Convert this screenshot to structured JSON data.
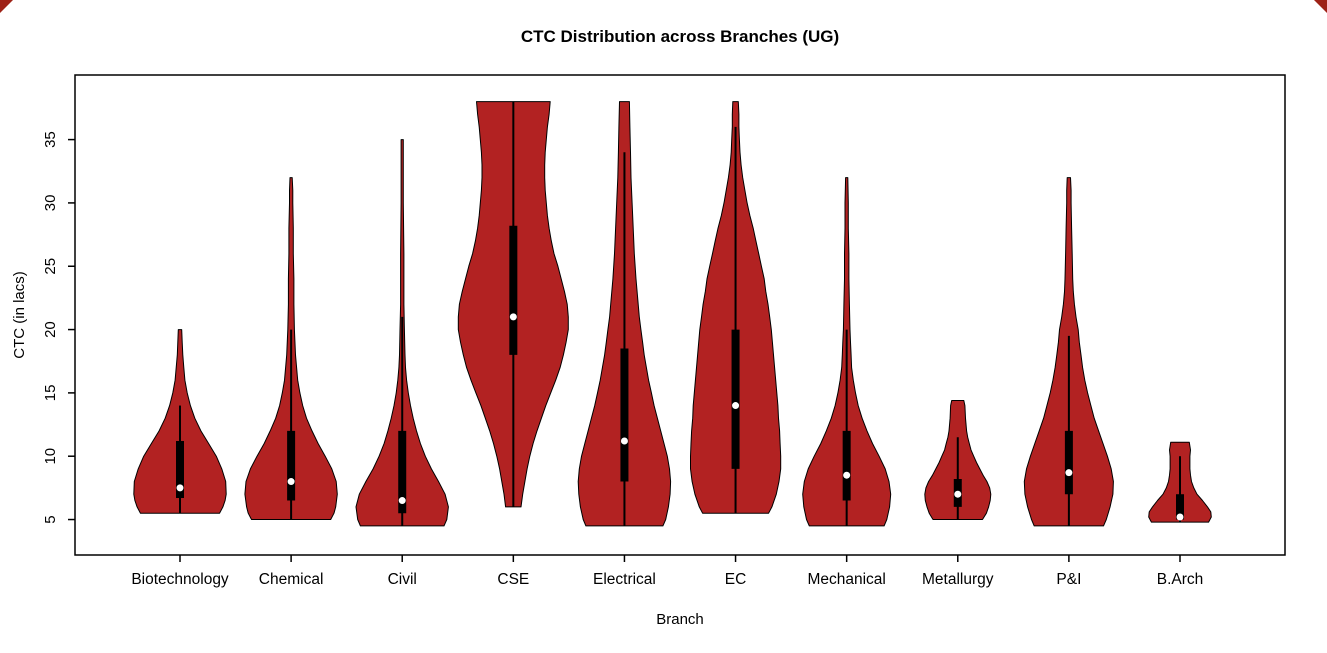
{
  "chart_data": {
    "type": "violin",
    "title": "CTC Distribution across Branches (UG)",
    "xlabel": "Branch",
    "ylabel": "CTC (in lacs)",
    "ylim": [
      2.2,
      40.1
    ],
    "yticks": [
      5,
      10,
      15,
      20,
      25,
      30,
      35
    ],
    "legend": "none",
    "grid": false,
    "colors": {
      "violin_fill": "#b22222",
      "outline": "#000000",
      "box": "#000000",
      "median_dot": "#ffffff",
      "background": "#ffffff",
      "corner_artifact": "#9e2217"
    },
    "categories": [
      "Biotechnology",
      "Chemical",
      "Civil",
      "CSE",
      "Electrical",
      "EC",
      "Mechanical",
      "Metallurgy",
      "P&I",
      "B.Arch"
    ],
    "series": [
      {
        "name": "Biotechnology",
        "shape": [
          [
            5.5,
            0.72
          ],
          [
            6,
            0.78
          ],
          [
            6.5,
            0.82
          ],
          [
            7,
            0.84
          ],
          [
            8,
            0.83
          ],
          [
            9,
            0.76
          ],
          [
            10,
            0.66
          ],
          [
            11,
            0.52
          ],
          [
            12,
            0.38
          ],
          [
            13,
            0.27
          ],
          [
            14,
            0.19
          ],
          [
            15,
            0.13
          ],
          [
            16,
            0.09
          ],
          [
            17,
            0.07
          ],
          [
            18,
            0.05
          ],
          [
            19,
            0.04
          ],
          [
            20,
            0.03
          ]
        ],
        "box": {
          "low": 5.5,
          "q1": 6.7,
          "median": 7.5,
          "q3": 11.2,
          "high": 14
        }
      },
      {
        "name": "Chemical",
        "shape": [
          [
            5,
            0.72
          ],
          [
            5.5,
            0.78
          ],
          [
            6,
            0.81
          ],
          [
            7,
            0.84
          ],
          [
            8,
            0.82
          ],
          [
            9,
            0.74
          ],
          [
            10,
            0.62
          ],
          [
            11,
            0.49
          ],
          [
            12,
            0.38
          ],
          [
            13,
            0.28
          ],
          [
            14,
            0.21
          ],
          [
            15,
            0.16
          ],
          [
            16,
            0.12
          ],
          [
            17,
            0.1
          ],
          [
            18,
            0.08
          ],
          [
            20,
            0.06
          ],
          [
            22,
            0.05
          ],
          [
            24,
            0.05
          ],
          [
            26,
            0.04
          ],
          [
            28,
            0.04
          ],
          [
            30,
            0.03
          ],
          [
            31,
            0.03
          ],
          [
            32,
            0.02
          ]
        ],
        "box": {
          "low": 5,
          "q1": 6.5,
          "median": 8,
          "q3": 12,
          "high": 20
        }
      },
      {
        "name": "Civil",
        "shape": [
          [
            4.5,
            0.76
          ],
          [
            5,
            0.81
          ],
          [
            6,
            0.84
          ],
          [
            7,
            0.78
          ],
          [
            8,
            0.66
          ],
          [
            9,
            0.53
          ],
          [
            10,
            0.42
          ],
          [
            11,
            0.33
          ],
          [
            12,
            0.26
          ],
          [
            13,
            0.2
          ],
          [
            14,
            0.15
          ],
          [
            15,
            0.11
          ],
          [
            16,
            0.08
          ],
          [
            17,
            0.06
          ],
          [
            18,
            0.05
          ],
          [
            20,
            0.04
          ],
          [
            22,
            0.03
          ],
          [
            26,
            0.03
          ],
          [
            30,
            0.02
          ],
          [
            33,
            0.02
          ],
          [
            35,
            0.02
          ]
        ],
        "box": {
          "low": 4.5,
          "q1": 5.5,
          "median": 6.5,
          "q3": 12,
          "high": 21
        }
      },
      {
        "name": "CSE",
        "shape": [
          [
            6,
            0.14
          ],
          [
            7,
            0.17
          ],
          [
            8,
            0.21
          ],
          [
            9,
            0.25
          ],
          [
            10,
            0.3
          ],
          [
            11,
            0.36
          ],
          [
            12,
            0.43
          ],
          [
            13,
            0.51
          ],
          [
            14,
            0.59
          ],
          [
            15,
            0.68
          ],
          [
            16,
            0.77
          ],
          [
            17,
            0.85
          ],
          [
            18,
            0.91
          ],
          [
            19,
            0.96
          ],
          [
            20,
            1.0
          ],
          [
            21,
            1.0
          ],
          [
            22,
            0.98
          ],
          [
            23,
            0.93
          ],
          [
            24,
            0.87
          ],
          [
            25,
            0.81
          ],
          [
            26,
            0.74
          ],
          [
            27,
            0.69
          ],
          [
            28,
            0.65
          ],
          [
            29,
            0.62
          ],
          [
            30,
            0.6
          ],
          [
            31,
            0.58
          ],
          [
            32,
            0.57
          ],
          [
            33,
            0.57
          ],
          [
            34,
            0.58
          ],
          [
            35,
            0.6
          ],
          [
            36,
            0.62
          ],
          [
            37,
            0.65
          ],
          [
            38,
            0.67
          ]
        ],
        "box": {
          "low": 6,
          "q1": 18,
          "median": 21,
          "q3": 28.2,
          "high": 38
        }
      },
      {
        "name": "Electrical",
        "shape": [
          [
            4.5,
            0.7
          ],
          [
            5,
            0.75
          ],
          [
            6,
            0.8
          ],
          [
            7,
            0.83
          ],
          [
            8,
            0.84
          ],
          [
            9,
            0.82
          ],
          [
            10,
            0.78
          ],
          [
            11,
            0.72
          ],
          [
            12,
            0.66
          ],
          [
            13,
            0.6
          ],
          [
            14,
            0.54
          ],
          [
            15,
            0.49
          ],
          [
            16,
            0.44
          ],
          [
            17,
            0.4
          ],
          [
            18,
            0.36
          ],
          [
            19,
            0.33
          ],
          [
            20,
            0.3
          ],
          [
            21,
            0.27
          ],
          [
            22,
            0.25
          ],
          [
            24,
            0.21
          ],
          [
            26,
            0.18
          ],
          [
            28,
            0.16
          ],
          [
            30,
            0.14
          ],
          [
            32,
            0.12
          ],
          [
            34,
            0.11
          ],
          [
            36,
            0.1
          ],
          [
            38,
            0.09
          ]
        ],
        "box": {
          "low": 4.5,
          "q1": 8,
          "median": 11.2,
          "q3": 18.5,
          "high": 34
        }
      },
      {
        "name": "EC",
        "shape": [
          [
            5.5,
            0.6
          ],
          [
            6,
            0.66
          ],
          [
            7,
            0.74
          ],
          [
            8,
            0.79
          ],
          [
            9,
            0.82
          ],
          [
            10,
            0.82
          ],
          [
            11,
            0.81
          ],
          [
            12,
            0.8
          ],
          [
            13,
            0.78
          ],
          [
            14,
            0.77
          ],
          [
            15,
            0.75
          ],
          [
            16,
            0.73
          ],
          [
            17,
            0.71
          ],
          [
            18,
            0.69
          ],
          [
            19,
            0.67
          ],
          [
            20,
            0.65
          ],
          [
            21,
            0.62
          ],
          [
            22,
            0.59
          ],
          [
            23,
            0.55
          ],
          [
            24,
            0.52
          ],
          [
            25,
            0.47
          ],
          [
            26,
            0.42
          ],
          [
            27,
            0.37
          ],
          [
            28,
            0.32
          ],
          [
            29,
            0.26
          ],
          [
            30,
            0.21
          ],
          [
            31,
            0.17
          ],
          [
            32,
            0.13
          ],
          [
            33,
            0.1
          ],
          [
            34,
            0.08
          ],
          [
            35,
            0.07
          ],
          [
            36,
            0.06
          ],
          [
            37,
            0.06
          ],
          [
            38,
            0.05
          ]
        ],
        "box": {
          "low": 5.5,
          "q1": 9,
          "median": 14,
          "q3": 20,
          "high": 36
        }
      },
      {
        "name": "Mechanical",
        "shape": [
          [
            4.5,
            0.68
          ],
          [
            5,
            0.73
          ],
          [
            6,
            0.78
          ],
          [
            7,
            0.8
          ],
          [
            8,
            0.77
          ],
          [
            9,
            0.7
          ],
          [
            10,
            0.59
          ],
          [
            11,
            0.47
          ],
          [
            12,
            0.37
          ],
          [
            13,
            0.28
          ],
          [
            14,
            0.21
          ],
          [
            15,
            0.16
          ],
          [
            16,
            0.12
          ],
          [
            17,
            0.09
          ],
          [
            18,
            0.08
          ],
          [
            19,
            0.07
          ],
          [
            20,
            0.06
          ],
          [
            22,
            0.05
          ],
          [
            24,
            0.04
          ],
          [
            26,
            0.04
          ],
          [
            28,
            0.03
          ],
          [
            30,
            0.03
          ],
          [
            32,
            0.02
          ]
        ],
        "box": {
          "low": 4.5,
          "q1": 6.5,
          "median": 8.5,
          "q3": 12,
          "high": 20
        }
      },
      {
        "name": "Metallurgy",
        "shape": [
          [
            5,
            0.45
          ],
          [
            5.5,
            0.52
          ],
          [
            6,
            0.56
          ],
          [
            6.5,
            0.59
          ],
          [
            7,
            0.6
          ],
          [
            7.5,
            0.58
          ],
          [
            8,
            0.53
          ],
          [
            8.5,
            0.46
          ],
          [
            9,
            0.4
          ],
          [
            9.5,
            0.34
          ],
          [
            10,
            0.29
          ],
          [
            10.5,
            0.24
          ],
          [
            11,
            0.21
          ],
          [
            11.5,
            0.18
          ],
          [
            12,
            0.16
          ],
          [
            13,
            0.14
          ],
          [
            14,
            0.13
          ],
          [
            14.4,
            0.11
          ]
        ],
        "box": {
          "low": 5,
          "q1": 6,
          "median": 7,
          "q3": 8.2,
          "high": 11.5
        }
      },
      {
        "name": "P&I",
        "shape": [
          [
            4.5,
            0.63
          ],
          [
            5,
            0.68
          ],
          [
            6,
            0.75
          ],
          [
            7,
            0.8
          ],
          [
            8,
            0.81
          ],
          [
            9,
            0.77
          ],
          [
            10,
            0.7
          ],
          [
            11,
            0.62
          ],
          [
            12,
            0.54
          ],
          [
            13,
            0.46
          ],
          [
            14,
            0.4
          ],
          [
            15,
            0.34
          ],
          [
            16,
            0.29
          ],
          [
            17,
            0.25
          ],
          [
            18,
            0.22
          ],
          [
            19,
            0.19
          ],
          [
            20,
            0.17
          ],
          [
            21,
            0.13
          ],
          [
            22,
            0.1
          ],
          [
            23,
            0.08
          ],
          [
            24,
            0.07
          ],
          [
            26,
            0.06
          ],
          [
            28,
            0.05
          ],
          [
            30,
            0.04
          ],
          [
            31,
            0.04
          ],
          [
            32,
            0.03
          ]
        ],
        "box": {
          "low": 4.5,
          "q1": 7,
          "median": 8.7,
          "q3": 12,
          "high": 19.5
        }
      },
      {
        "name": "B.Arch",
        "shape": [
          [
            4.8,
            0.52
          ],
          [
            5.2,
            0.57
          ],
          [
            5.6,
            0.56
          ],
          [
            6,
            0.5
          ],
          [
            6.5,
            0.41
          ],
          [
            7,
            0.31
          ],
          [
            7.5,
            0.25
          ],
          [
            8,
            0.21
          ],
          [
            8.5,
            0.19
          ],
          [
            9,
            0.18
          ],
          [
            9.5,
            0.18
          ],
          [
            10,
            0.18
          ],
          [
            10.5,
            0.19
          ],
          [
            11.1,
            0.17
          ]
        ],
        "box": {
          "low": 4.8,
          "q1": 5,
          "median": 5.2,
          "q3": 7,
          "high": 10
        }
      }
    ]
  }
}
